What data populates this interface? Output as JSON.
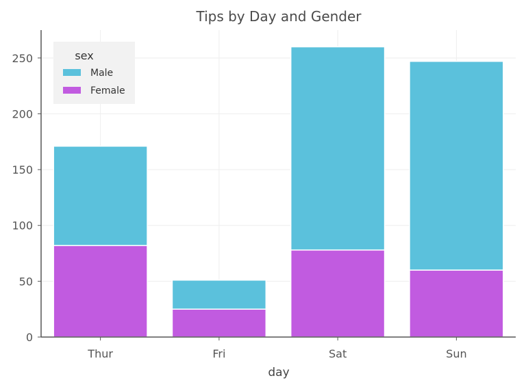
{
  "chart_data": {
    "type": "bar",
    "stacked": true,
    "title": "Tips by Day and Gender",
    "xlabel": "day",
    "ylabel": "",
    "categories": [
      "Thur",
      "Fri",
      "Sat",
      "Sun"
    ],
    "ylim": [
      0,
      275
    ],
    "yticks": [
      0,
      50,
      100,
      150,
      200,
      250
    ],
    "grid": true,
    "legend": {
      "title": "sex",
      "position": "top-left"
    },
    "series": [
      {
        "name": "Female",
        "values": [
          82,
          25,
          78,
          60
        ],
        "color": "#c15be0"
      },
      {
        "name": "Male",
        "values": [
          89,
          26,
          182,
          187
        ],
        "color": "#5bc1dc"
      }
    ],
    "legend_order": [
      "Male",
      "Female"
    ]
  }
}
